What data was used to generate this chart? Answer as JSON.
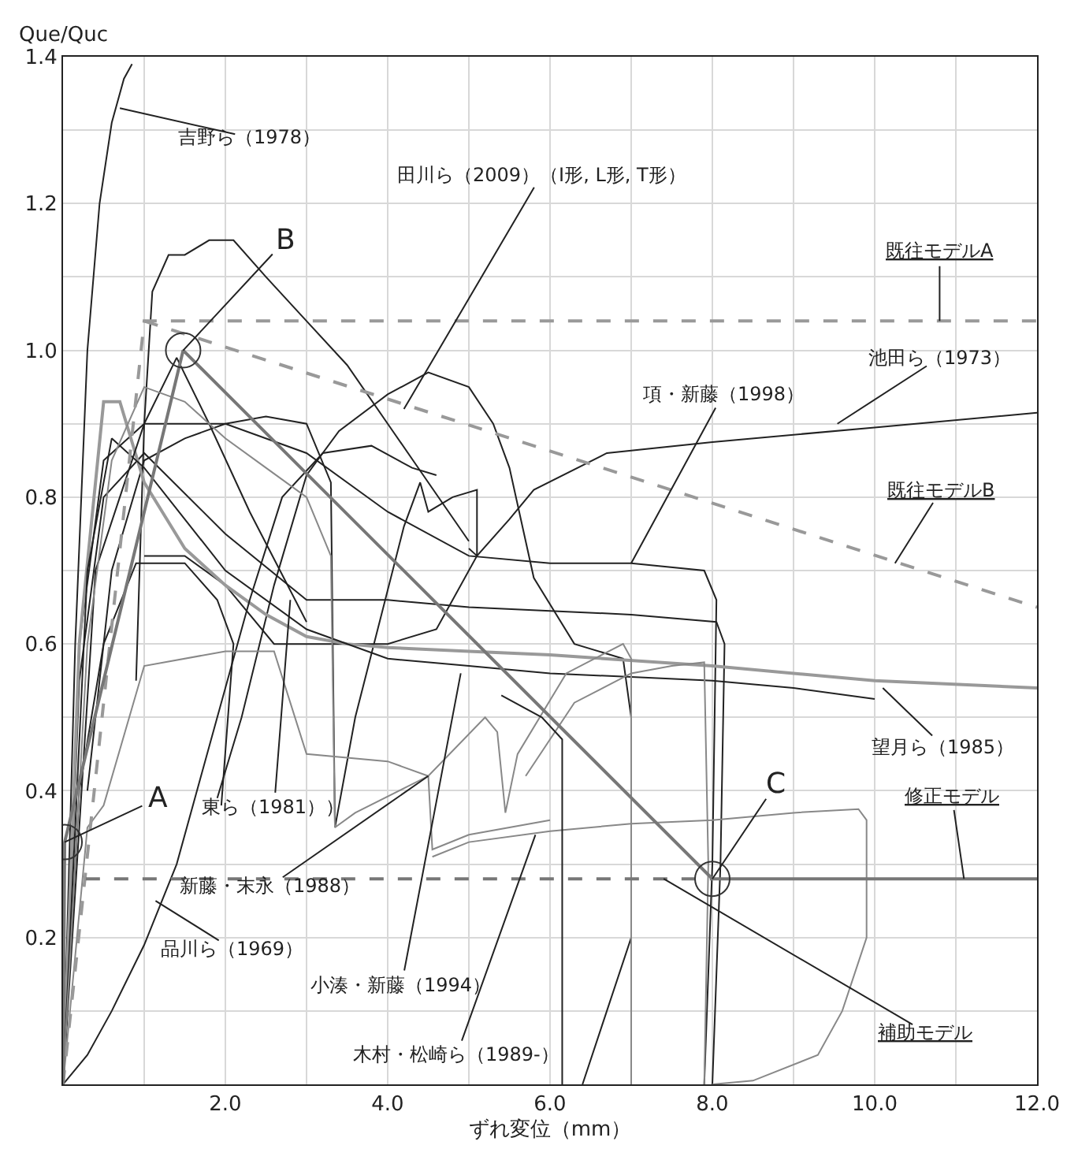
{
  "chart_data": {
    "type": "line",
    "ylabel": "Que/Quc",
    "xlabel": "ずれ変位（mm）",
    "xlim": [
      0,
      12
    ],
    "ylim": [
      0,
      1.4
    ],
    "xticks": [
      {
        "value": 0,
        "label": null
      },
      {
        "value": 1,
        "label": null
      },
      {
        "value": 2,
        "label": "2.0"
      },
      {
        "value": 3,
        "label": null
      },
      {
        "value": 4,
        "label": "4.0"
      },
      {
        "value": 5,
        "label": null
      },
      {
        "value": 6,
        "label": "6.0"
      },
      {
        "value": 7,
        "label": null
      },
      {
        "value": 8,
        "label": "8.0"
      },
      {
        "value": 9,
        "label": null
      },
      {
        "value": 10,
        "label": "10.0"
      },
      {
        "value": 11,
        "label": null
      },
      {
        "value": 12,
        "label": "12.0"
      }
    ],
    "yticks": [
      {
        "value": 0,
        "label": null
      },
      {
        "value": 0.1,
        "label": null
      },
      {
        "value": 0.2,
        "label": "0.2"
      },
      {
        "value": 0.3,
        "label": null
      },
      {
        "value": 0.4,
        "label": "0.4"
      },
      {
        "value": 0.5,
        "label": null
      },
      {
        "value": 0.6,
        "label": "0.6"
      },
      {
        "value": 0.7,
        "label": null
      },
      {
        "value": 0.8,
        "label": "0.8"
      },
      {
        "value": 0.9,
        "label": null
      },
      {
        "value": 1.0,
        "label": "1.0"
      },
      {
        "value": 1.1,
        "label": null
      },
      {
        "value": 1.2,
        "label": "1.2"
      },
      {
        "value": 1.3,
        "label": null
      },
      {
        "value": 1.4,
        "label": "1.4"
      }
    ],
    "grid": true,
    "marker": "none",
    "line_style": "solid",
    "series": [
      {
        "color": "#222222",
        "x": [
          0,
          0.15,
          0.3,
          0.45,
          0.6,
          0.75,
          0.85
        ],
        "values": [
          0,
          0.6,
          1.0,
          1.2,
          1.31,
          1.37,
          1.39
        ]
      },
      {
        "color": "#222222",
        "x": [
          0.9,
          1.0,
          1.1,
          1.3,
          1.5,
          1.8,
          2.1,
          2.5,
          3.0,
          3.5,
          4.0,
          4.5,
          5.0
        ],
        "values": [
          0.55,
          0.9,
          1.08,
          1.13,
          1.13,
          1.15,
          1.15,
          1.1,
          1.04,
          0.98,
          0.9,
          0.82,
          0.74
        ]
      },
      {
        "color": "#222222",
        "x": [
          1.9,
          2.2,
          2.6,
          3.0,
          3.4,
          4.0,
          4.5,
          5.0,
          5.3,
          5.5,
          5.8,
          6.3,
          6.9,
          7.0,
          7.0,
          6.7,
          6.4
        ],
        "values": [
          0.39,
          0.5,
          0.68,
          0.83,
          0.89,
          0.94,
          0.97,
          0.95,
          0.9,
          0.84,
          0.69,
          0.6,
          0.58,
          0.5,
          0.2,
          0.1,
          0.0
        ]
      },
      {
        "color": "#222222",
        "x": [
          0.3,
          0.6,
          1.0,
          1.5,
          2.0,
          2.5,
          3.0,
          3.3,
          3.35,
          3.6,
          4.2,
          4.4,
          4.5,
          4.8,
          5.1,
          5.1,
          5.0
        ],
        "values": [
          0.4,
          0.7,
          0.85,
          0.88,
          0.9,
          0.91,
          0.9,
          0.82,
          0.35,
          0.5,
          0.76,
          0.82,
          0.78,
          0.8,
          0.81,
          0.72,
          0.73
        ]
      },
      {
        "color": "#222222",
        "x": [
          1.0,
          1.5,
          2.0,
          2.6,
          3.0,
          3.5,
          4.0,
          4.6,
          5.1,
          5.5,
          5.8,
          6.7,
          8,
          10,
          12
        ],
        "values": [
          0.72,
          0.72,
          0.68,
          0.6,
          0.6,
          0.6,
          0.6,
          0.62,
          0.72,
          0.77,
          0.81,
          0.86,
          0.875,
          0.895,
          0.915
        ]
      },
      {
        "color": "#222222",
        "x": [
          0,
          0.2,
          0.5,
          1.0,
          2.0,
          3.0,
          4.0,
          5.0,
          6.0,
          7.0,
          7.9,
          8.05,
          8.0,
          7.9
        ],
        "values": [
          0,
          0.6,
          0.85,
          0.9,
          0.9,
          0.86,
          0.78,
          0.72,
          0.71,
          0.71,
          0.7,
          0.66,
          0.3,
          0.0
        ]
      },
      {
        "color": "#222222",
        "x": [
          0,
          0.2,
          0.5,
          1.0,
          2.0,
          3.0,
          4.0,
          5.0,
          6.0,
          7.0,
          8.05,
          8.15,
          8.1,
          8.0
        ],
        "values": [
          0,
          0.55,
          0.8,
          0.86,
          0.75,
          0.66,
          0.66,
          0.65,
          0.645,
          0.64,
          0.63,
          0.6,
          0.3,
          0
        ]
      },
      {
        "color": "#999999",
        "x": [
          0,
          0.2,
          0.5,
          0.7,
          1.0,
          1.5,
          2.0,
          2.5,
          3.0,
          3.5,
          4.0,
          5.0,
          6.0,
          8.0,
          10.0,
          12.0
        ],
        "values": [
          0,
          0.6,
          0.93,
          0.93,
          0.82,
          0.73,
          0.68,
          0.64,
          0.61,
          0.6,
          0.595,
          0.59,
          0.585,
          0.57,
          0.55,
          0.54
        ]
      },
      {
        "color": "#222222",
        "x": [
          0,
          0.3,
          0.6,
          1.0,
          2.0,
          3.0,
          4.0,
          5.0,
          6.0,
          7.0,
          8.0,
          9.0,
          10.0
        ],
        "values": [
          0,
          0.7,
          0.88,
          0.84,
          0.7,
          0.62,
          0.58,
          0.57,
          0.56,
          0.555,
          0.55,
          0.54,
          0.525
        ]
      },
      {
        "color": "#222222",
        "x": [
          0,
          0.2,
          0.5,
          0.9,
          1.5,
          1.9,
          2.1,
          1.95
        ],
        "values": [
          0,
          0.4,
          0.6,
          0.71,
          0.71,
          0.66,
          0.6,
          0.38
        ]
      },
      {
        "color": "#222222",
        "x": [
          0,
          0.4,
          1.0,
          1.4,
          1.8,
          2.3,
          3.0
        ],
        "values": [
          0,
          0.7,
          0.9,
          0.99,
          0.9,
          0.78,
          0.63
        ]
      },
      {
        "color": "#222222",
        "x": [
          0,
          0.3,
          0.6,
          1.0,
          1.4,
          1.9,
          2.3,
          2.7,
          3.2,
          3.8,
          4.3,
          4.6
        ],
        "values": [
          0,
          0.04,
          0.1,
          0.19,
          0.3,
          0.5,
          0.66,
          0.8,
          0.86,
          0.87,
          0.84,
          0.83
        ]
      },
      {
        "color": "#888888",
        "x": [
          0,
          0.3,
          0.6,
          1.0,
          1.5,
          2.0,
          2.5,
          3.0,
          3.3,
          3.35,
          3.6,
          4.5,
          5.2,
          5.35,
          5.45,
          5.6,
          6.2,
          6.9,
          7.0,
          7.0
        ],
        "values": [
          0,
          0.6,
          0.85,
          0.95,
          0.93,
          0.88,
          0.84,
          0.8,
          0.72,
          0.35,
          0.37,
          0.42,
          0.5,
          0.48,
          0.37,
          0.45,
          0.56,
          0.6,
          0.58,
          0.0
        ]
      },
      {
        "color": "#888888",
        "x": [
          0,
          0.3,
          0.5,
          1.0,
          2.0,
          2.6,
          3.0,
          4.0,
          4.5,
          4.55,
          5.0,
          6.0
        ],
        "values": [
          0,
          0.35,
          0.38,
          0.57,
          0.59,
          0.59,
          0.45,
          0.44,
          0.42,
          0.32,
          0.34,
          0.36
        ]
      },
      {
        "color": "#888888",
        "x": [
          4.55,
          5.0,
          6.0,
          7.0,
          8.0,
          9.0,
          9.8,
          9.9,
          9.9,
          9.6,
          9.3,
          8.5,
          8.0
        ],
        "values": [
          0.31,
          0.33,
          0.345,
          0.355,
          0.36,
          0.37,
          0.375,
          0.36,
          0.2,
          0.1,
          0.04,
          0.005,
          0.0
        ]
      },
      {
        "color": "#888888",
        "x": [
          5.7,
          6.3,
          7.0,
          7.5,
          7.9,
          7.95,
          7.9
        ],
        "values": [
          0.42,
          0.52,
          0.56,
          0.57,
          0.575,
          0.3,
          0.0
        ]
      },
      {
        "color": "#222222",
        "x": [
          5.4,
          5.9,
          6.15,
          6.15
        ],
        "values": [
          0.53,
          0.5,
          0.47,
          0.0
        ]
      },
      {
        "color": "#999999",
        "line_style": "dashed",
        "x": [
          0,
          1.0,
          12
        ],
        "values": [
          0,
          1.04,
          1.04
        ]
      },
      {
        "color": "#999999",
        "line_style": "dashed",
        "x": [
          1.0,
          12
        ],
        "values": [
          1.04,
          0.65
        ]
      },
      {
        "color": "#777777",
        "x": [
          0,
          0.02,
          1.48,
          8.0,
          12
        ],
        "values": [
          0,
          0.33,
          1.0,
          0.28,
          0.28
        ]
      },
      {
        "color": "#777777",
        "line_style": "dashed",
        "x": [
          0.28,
          8.0
        ],
        "values": [
          0.28,
          0.28
        ]
      },
      {
        "type": "scatter",
        "marker": "circle",
        "color": "#333333",
        "x": [
          0.02,
          1.48,
          8.0
        ],
        "values": [
          0.33,
          1.0,
          0.28
        ]
      }
    ],
    "annotations": [
      {
        "text": "吉野ら（1978）",
        "x": 0.7,
        "y": 1.33
      },
      {
        "text": "田川ら（2009）（I形, L形, T形）",
        "x": 4.2,
        "y": 0.92
      },
      {
        "text": "既往モデルA",
        "x": 10.8,
        "y": 1.04
      },
      {
        "text": "池田ら（1973）",
        "x": 9.54,
        "y": 0.9
      },
      {
        "text": "項・新藤（1998）",
        "x": 7.0,
        "y": 0.71
      },
      {
        "text": "既往モデルB",
        "x": 10.25,
        "y": 0.71
      },
      {
        "text": "望月ら（1985）",
        "x": 10.1,
        "y": 0.54
      },
      {
        "text": "修正モデル",
        "x": 11.1,
        "y": 0.28
      },
      {
        "text": "補助モデル",
        "x": 7.4,
        "y": 0.28
      },
      {
        "text": "東ら（1981））",
        "x": 2.8,
        "y": 0.66
      },
      {
        "text": "新藤・末永（1988）",
        "x": 4.5,
        "y": 0.42
      },
      {
        "text": "品川ら（1969）",
        "x": 1.14,
        "y": 0.25
      },
      {
        "text": "小湊・新藤（1994）",
        "x": 4.9,
        "y": 0.56
      },
      {
        "text": "木村・松崎ら（1989-）",
        "x": 5.82,
        "y": 0.34
      },
      {
        "text": "A",
        "x": 0.02,
        "y": 0.33
      },
      {
        "text": "B",
        "x": 1.48,
        "y": 1.0
      },
      {
        "text": "C",
        "x": 8.0,
        "y": 0.28
      }
    ]
  }
}
